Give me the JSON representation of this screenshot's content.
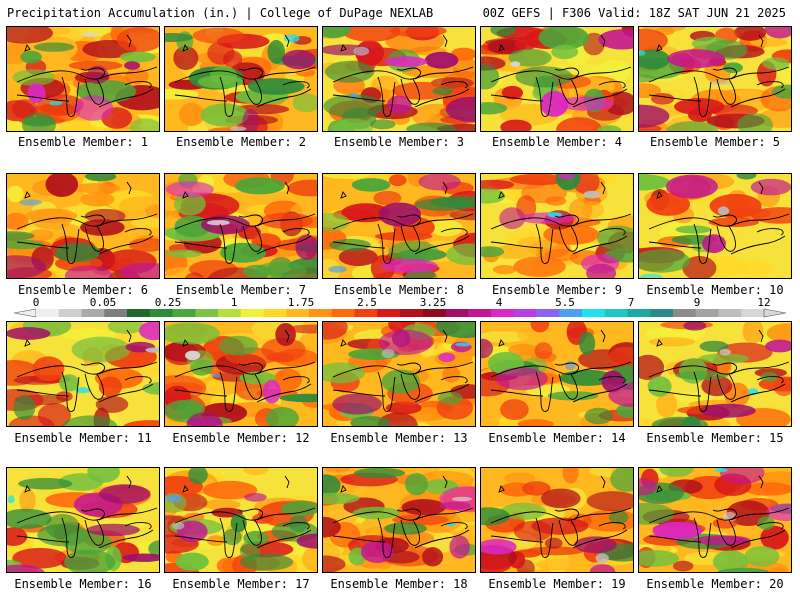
{
  "header": {
    "title": "Precipitation Accumulation (in.) | College of DuPage NEXLAB",
    "valid": "00Z GEFS | F306 Valid: 18Z SAT JUN 21 2025"
  },
  "caption_prefix": "Ensemble Member:",
  "members": [
    "1",
    "2",
    "3",
    "4",
    "5",
    "6",
    "7",
    "8",
    "9",
    "10",
    "11",
    "12",
    "13",
    "14",
    "15",
    "16",
    "17",
    "18",
    "19",
    "20"
  ],
  "colorbar": {
    "labels": [
      "0",
      "0.05",
      "0.25",
      "1",
      "1.75",
      "2.5",
      "3.25",
      "4",
      "5.5",
      "7",
      "9",
      "12"
    ],
    "colors": [
      "#eeeeee",
      "#cfcfcf",
      "#a9a9a9",
      "#7f7f7f",
      "#1e6a2a",
      "#2e8b3a",
      "#4aa53a",
      "#7dc242",
      "#b7de3e",
      "#f3f03a",
      "#ffd92a",
      "#ffb81f",
      "#ff9412",
      "#ff6a0b",
      "#f04010",
      "#d8181a",
      "#b3101c",
      "#8e0c20",
      "#a0106a",
      "#c21891",
      "#dc28c4",
      "#b540e8",
      "#8a64f2",
      "#4aa0f5",
      "#22e0ee",
      "#20c8c2",
      "#1ea8a4",
      "#2b8a8a",
      "#8c8c8c",
      "#a3a3a3",
      "#bdbdbd",
      "#d7d7d7"
    ]
  }
}
